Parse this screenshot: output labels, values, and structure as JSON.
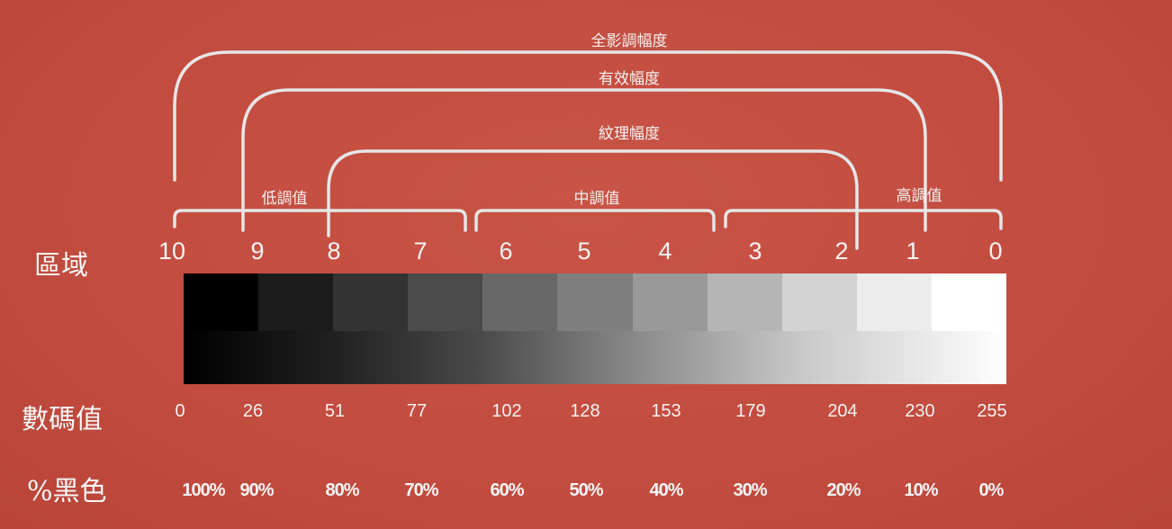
{
  "range_labels": {
    "full": "全影調幅度",
    "effective": "有效幅度",
    "texture": "紋理幅度"
  },
  "group_labels": {
    "low": "低調值",
    "mid": "中調值",
    "high": "高調值"
  },
  "row_labels": {
    "zone": "區域",
    "digital": "數碼值",
    "black": "%黑色"
  },
  "zones": [
    "10",
    "9",
    "8",
    "7",
    "6",
    "5",
    "4",
    "3",
    "2",
    "1",
    "0"
  ],
  "digital_values": [
    "0",
    "26",
    "51",
    "77",
    "102",
    "128",
    "153",
    "179",
    "204",
    "230",
    "255"
  ],
  "black_percent": [
    "100%",
    "90%",
    "80%",
    "70%",
    "60%",
    "50%",
    "40%",
    "30%",
    "20%",
    "10%",
    "0%"
  ],
  "step_colors": [
    "#000000",
    "#1c1c1c",
    "#333333",
    "#4b4b4b",
    "#686868",
    "#7f7f7f",
    "#999999",
    "#b5b5b5",
    "#d2d2d2",
    "#ececec",
    "#ffffff"
  ],
  "colors": {
    "background": "#c24c3f",
    "bracket": "#eaeaea"
  }
}
